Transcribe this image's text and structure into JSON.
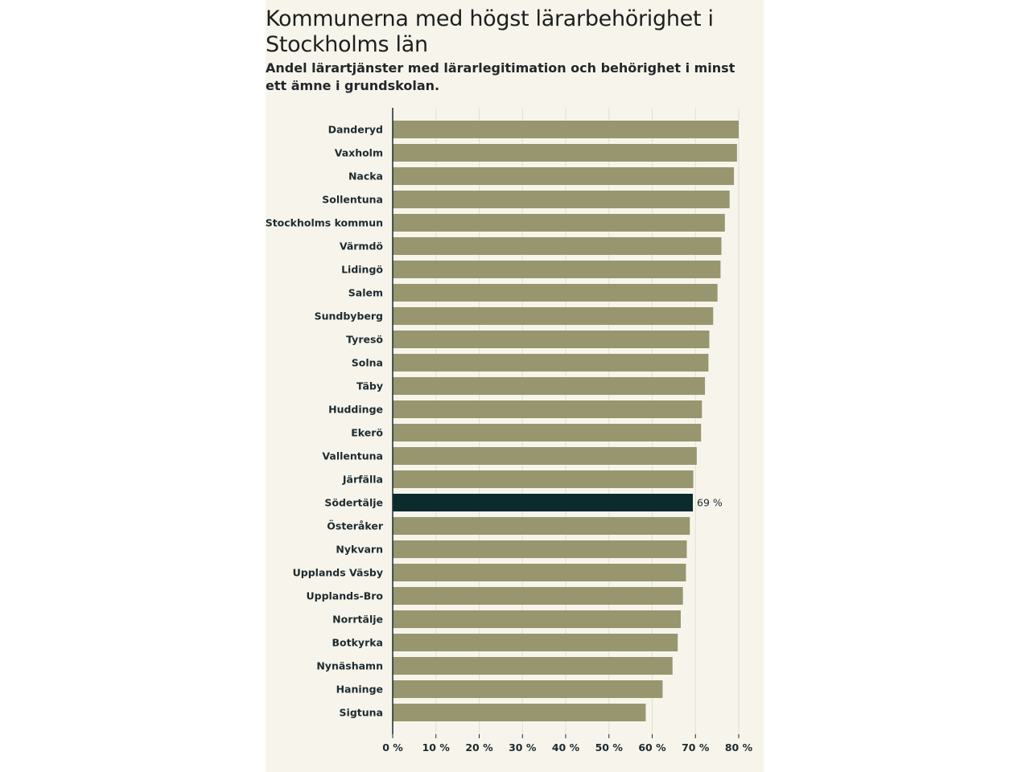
{
  "colors": {
    "bar": "#97966e",
    "highlight": "#0b2b2d",
    "grid": "#e2e0d4",
    "axis": "#1d2a2f",
    "background": "#f7f5eb"
  },
  "chart_data": {
    "type": "bar",
    "orientation": "horizontal",
    "title": "Kommunerna med högst lärarbehörighet i Stockholms län",
    "subtitle": "Andel lärartjänster med lärarlegitimation och behörighet i minst ett ämne i grundskolan.",
    "categories": [
      "Danderyd",
      "Vaxholm",
      "Nacka",
      "Sollentuna",
      "Stockholms kommun",
      "Värmdö",
      "Lidingö",
      "Salem",
      "Sundbyberg",
      "Tyresö",
      "Solna",
      "Täby",
      "Huddinge",
      "Ekerö",
      "Vallentuna",
      "Järfälla",
      "Södertälje",
      "Österåker",
      "Nykvarn",
      "Upplands Väsby",
      "Upplands-Bro",
      "Norrtälje",
      "Botkyrka",
      "Nynäshamn",
      "Haninge",
      "Sigtuna"
    ],
    "values": [
      80.0,
      79.6,
      78.9,
      77.9,
      76.8,
      76.0,
      75.8,
      75.1,
      74.1,
      73.2,
      73.0,
      72.2,
      71.5,
      71.3,
      70.3,
      69.5,
      69.4,
      68.7,
      68.0,
      67.8,
      67.1,
      66.6,
      65.9,
      64.7,
      62.4,
      58.5
    ],
    "highlight": "Södertälje",
    "highlight_label": "69 %",
    "xlim": [
      0,
      80
    ],
    "xticks": [
      0,
      10,
      20,
      30,
      40,
      50,
      60,
      70,
      80
    ],
    "xtick_labels": [
      "0 %",
      "10 %",
      "20 %",
      "30 %",
      "40 %",
      "50 %",
      "60 %",
      "70 %",
      "80 %"
    ],
    "grid": true,
    "xlabel": "",
    "ylabel": ""
  }
}
